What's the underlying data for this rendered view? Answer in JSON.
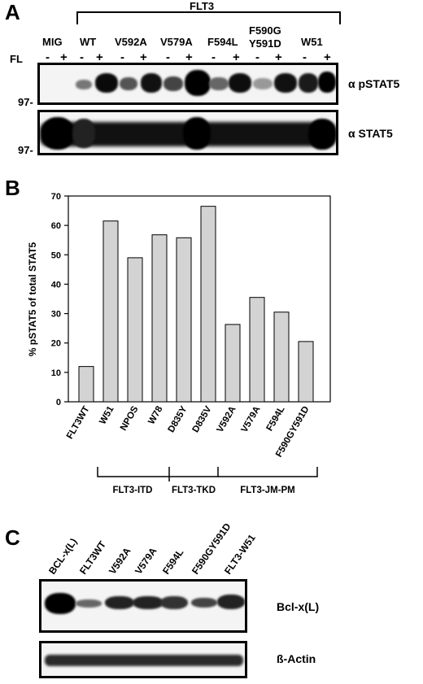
{
  "panel_a": {
    "letter": "A",
    "group_label": "FLT3",
    "fl_label": "FL",
    "minus": "-",
    "plus": "+",
    "lanes": [
      "MIG",
      "WT",
      "V592A",
      "V579A",
      "F594L",
      "F590G Y591D",
      "W51"
    ],
    "lane_line1": [
      "MIG",
      "WT",
      "V592A",
      "V579A",
      "F594L",
      "F590G",
      "W51"
    ],
    "lane_line2": [
      "",
      "",
      "",
      "",
      "",
      "Y591D",
      ""
    ],
    "mw_top": "97-",
    "mw_bottom": "97-",
    "antibody_top": "α pSTAT5",
    "antibody_bottom": "α STAT5"
  },
  "panel_b": {
    "letter": "B",
    "group_labels": [
      "FLT3-ITD",
      "FLT3-TKD",
      "FLT3-JM-PM"
    ]
  },
  "chart_data": {
    "type": "bar",
    "categories": [
      "FLT3WT",
      "W51",
      "NPOS",
      "W78",
      "D835Y",
      "D835V",
      "V592A",
      "V579A",
      "F594L",
      "F590GY591D"
    ],
    "values": [
      12,
      61.5,
      49,
      56.8,
      55.8,
      66.5,
      26.3,
      35.5,
      30.5,
      20.5
    ],
    "ylabel": "% pSTAT5 of total STAT5",
    "xlabel": "",
    "ylim": [
      0,
      70
    ],
    "yticks": [
      0,
      10,
      20,
      30,
      40,
      50,
      60,
      70
    ],
    "bar_color": "#d3d3d3",
    "grid": false
  },
  "panel_c": {
    "letter": "C",
    "lanes": [
      "BCL-x(L)",
      "FLT3WT",
      "V592A",
      "V579A",
      "F594L",
      "F590GY591D",
      "FLT3-W51"
    ],
    "antibody_top": "Bcl-x(L)",
    "antibody_bottom": "ß-Actin"
  }
}
